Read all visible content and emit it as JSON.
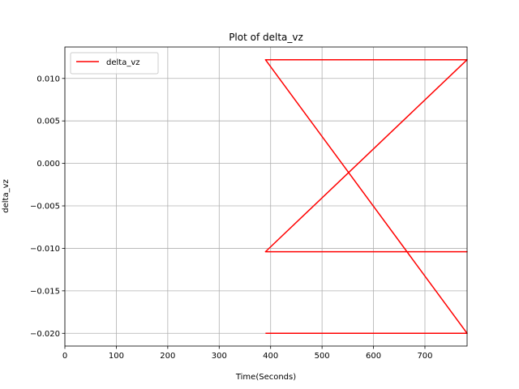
{
  "chart_data": {
    "type": "line",
    "title": "Plot of delta_vz",
    "xlabel": "Time(Seconds)",
    "ylabel": "delta_vz",
    "xlim": [
      0,
      782
    ],
    "ylim": [
      -0.0215,
      0.0137
    ],
    "xticks": [
      0,
      100,
      200,
      300,
      400,
      500,
      600,
      700
    ],
    "xtick_labels": [
      "0",
      "100",
      "200",
      "300",
      "400",
      "500",
      "600",
      "700"
    ],
    "yticks": [
      0.01,
      0.005,
      0.0,
      -0.005,
      -0.01,
      -0.015,
      -0.02
    ],
    "ytick_labels": [
      "0.010",
      "0.005",
      "0.000",
      "−0.005",
      "−0.010",
      "−0.015",
      "−0.020"
    ],
    "grid": true,
    "legend": {
      "placement": "top-left"
    },
    "series": [
      {
        "name": "delta_vz",
        "color": "#ff0000",
        "x": [
          390,
          782,
          390,
          782,
          782,
          390,
          782,
          390
        ],
        "y": [
          -0.02,
          -0.02,
          0.0122,
          0.0122,
          0.0122,
          -0.0104,
          -0.0104,
          -0.0104
        ]
      }
    ]
  }
}
